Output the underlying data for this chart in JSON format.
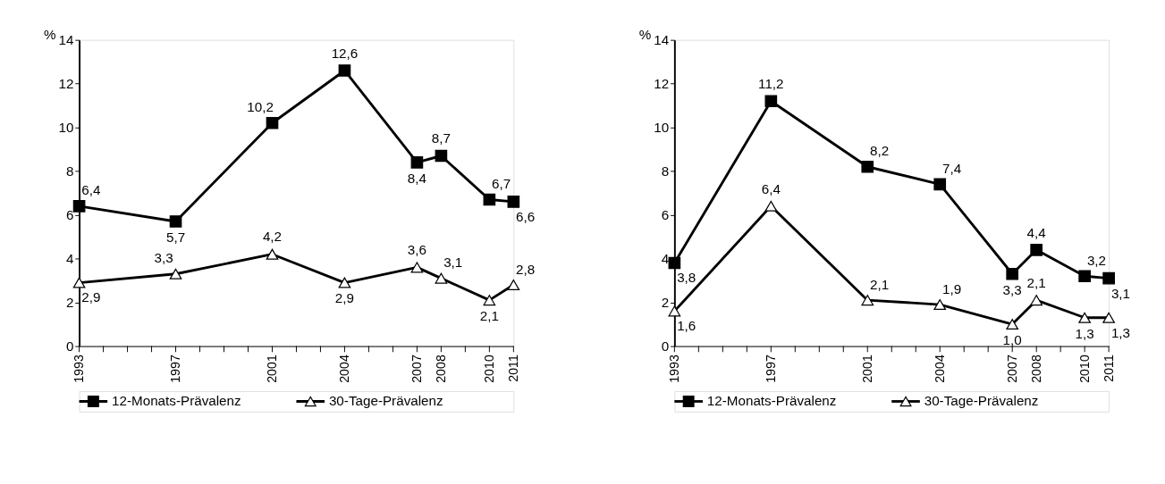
{
  "chart_data": [
    {
      "type": "line",
      "x": [
        1993,
        1997,
        2001,
        2004,
        2007,
        2008,
        2010,
        2011
      ],
      "ylabel": "%",
      "xlim": [
        1993,
        2011
      ],
      "ylim": [
        0,
        14
      ],
      "yticks": [
        0,
        2,
        4,
        6,
        8,
        10,
        12,
        14
      ],
      "xticks": [
        1993,
        {
          "value": 1994,
          "label": null
        },
        {
          "value": 1995,
          "label": null
        },
        {
          "value": 1996,
          "label": null
        },
        1997,
        {
          "value": 1998,
          "label": null
        },
        {
          "value": 1999,
          "label": null
        },
        {
          "value": 2000,
          "label": null
        },
        2001,
        {
          "value": 2002,
          "label": null
        },
        {
          "value": 2003,
          "label": null
        },
        2004,
        {
          "value": 2005,
          "label": null
        },
        {
          "value": 2006,
          "label": null
        },
        2007,
        2008,
        {
          "value": 2009,
          "label": null
        },
        2010,
        2011
      ],
      "grid": false,
      "legend": "bottom",
      "line_style": "solid",
      "series": [
        {
          "name": "12-Monats-Prävalenz",
          "color": "#000000",
          "marker": "square",
          "values": [
            6.4,
            5.7,
            10.2,
            12.6,
            8.4,
            8.7,
            6.7,
            6.6
          ],
          "value_labels": [
            "6,4",
            "5,7",
            "10,2",
            "12,6",
            "8,4",
            "8,7",
            "6,7",
            "6,6"
          ]
        },
        {
          "name": "30-Tage-Prävalenz",
          "color": "#000000",
          "marker": "triangle",
          "values": [
            2.9,
            3.3,
            4.2,
            2.9,
            3.6,
            3.1,
            2.1,
            2.8
          ],
          "value_labels": [
            "2,9",
            "3,3",
            "4,2",
            "2,9",
            "3,6",
            "3,1",
            "2,1",
            "2,8"
          ]
        }
      ]
    },
    {
      "type": "line",
      "x": [
        1993,
        1997,
        2001,
        2004,
        2007,
        2008,
        2010,
        2011
      ],
      "ylabel": "%",
      "xlim": [
        1993,
        2011
      ],
      "ylim": [
        0,
        14
      ],
      "yticks": [
        0,
        2,
        4,
        6,
        8,
        10,
        12,
        14
      ],
      "xticks": [
        1993,
        {
          "value": 1994,
          "label": null
        },
        {
          "value": 1995,
          "label": null
        },
        {
          "value": 1996,
          "label": null
        },
        1997,
        {
          "value": 1998,
          "label": null
        },
        {
          "value": 1999,
          "label": null
        },
        {
          "value": 2000,
          "label": null
        },
        2001,
        {
          "value": 2002,
          "label": null
        },
        {
          "value": 2003,
          "label": null
        },
        2004,
        {
          "value": 2005,
          "label": null
        },
        {
          "value": 2006,
          "label": null
        },
        2007,
        2008,
        {
          "value": 2009,
          "label": null
        },
        2010,
        2011
      ],
      "grid": false,
      "legend": "bottom",
      "line_style": "solid",
      "series": [
        {
          "name": "12-Monats-Prävalenz",
          "color": "#000000",
          "marker": "square",
          "values": [
            3.8,
            11.2,
            8.2,
            7.4,
            3.3,
            4.4,
            3.2,
            3.1
          ],
          "value_labels": [
            "3,8",
            "11,2",
            "8,2",
            "7,4",
            "3,3",
            "4,4",
            "3,2",
            "3,1"
          ]
        },
        {
          "name": "30-Tage-Prävalenz",
          "color": "#000000",
          "marker": "triangle",
          "values": [
            1.6,
            6.4,
            2.1,
            1.9,
            1.0,
            2.1,
            1.3,
            1.3
          ],
          "value_labels": [
            "1,6",
            "6,4",
            "2,1",
            "1,9",
            "1,0",
            "2,1",
            "1,3",
            "1,3"
          ]
        }
      ]
    }
  ]
}
